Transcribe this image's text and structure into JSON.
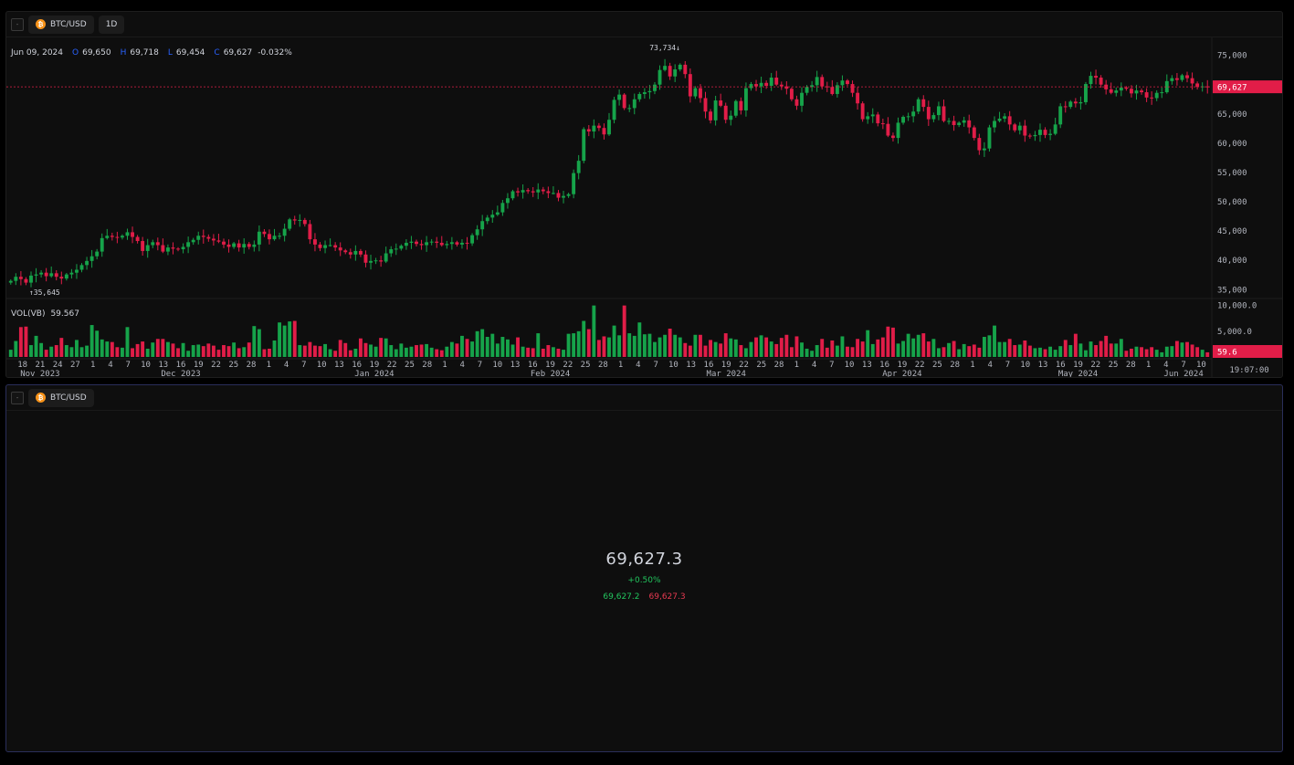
{
  "top_panel": {
    "symbol": "BTC/USD",
    "interval": "1D",
    "collapse_glyph": "-",
    "coin_glyph": "₿",
    "legend": {
      "date": "Jun 09, 2024",
      "o_label": "O",
      "o_value": "69,650",
      "h_label": "H",
      "h_value": "69,718",
      "l_label": "L",
      "l_value": "69,454",
      "c_label": "C",
      "c_value": "69,627",
      "change": "-0.032%"
    },
    "high_marker": "73,734↓",
    "low_marker": "↑35,645",
    "volume_legend": {
      "label": "VOL(VB)",
      "value": "59.567"
    },
    "time_label": "19:07:00"
  },
  "chart_data": {
    "type": "candlestick",
    "price_axis": [
      "75,000",
      "70,000",
      "65,000",
      "60,000",
      "55,000",
      "50,000",
      "45,000",
      "40,000",
      "35,000"
    ],
    "price_ylim": [
      33800,
      76500
    ],
    "last_price_label": "69,627",
    "last_price": 69627,
    "volume_axis": [
      "10,000.0",
      "5,000.0"
    ],
    "volume_ylim": [
      0,
      11000
    ],
    "last_volume_label": "59.6",
    "day_ticks": [
      "18",
      "21",
      "24",
      "27",
      "1",
      "4",
      "7",
      "10",
      "13",
      "16",
      "19",
      "22",
      "25",
      "28",
      "1",
      "4",
      "7",
      "10",
      "13",
      "16",
      "19",
      "22",
      "25",
      "28",
      "1",
      "4",
      "7",
      "10",
      "13",
      "16",
      "19",
      "22",
      "25",
      "28",
      "1",
      "4",
      "7",
      "10",
      "13",
      "16",
      "19",
      "22",
      "25",
      "28",
      "1",
      "4",
      "7",
      "10",
      "13",
      "16",
      "19",
      "22",
      "25",
      "28",
      "1",
      "4",
      "7",
      "10",
      "13",
      "16",
      "19",
      "22",
      "25",
      "28",
      "1",
      "4",
      "7",
      "10"
    ],
    "month_labels": [
      "Nov 2023",
      "Dec 2023",
      "Jan 2024",
      "Feb 2024",
      "Mar 2024",
      "Apr 2024",
      "May 2024",
      "Jun 2024"
    ],
    "colors": {
      "up": "#16a34a",
      "down": "#e11d48",
      "last_line": "#e11d48",
      "accent": "#2962ff"
    },
    "closes": [
      36500,
      37200,
      36800,
      36200,
      37400,
      37600,
      37900,
      37300,
      37800,
      37200,
      36900,
      37600,
      37900,
      38400,
      39200,
      39900,
      40700,
      41500,
      43800,
      44200,
      44000,
      43900,
      44200,
      44800,
      44000,
      43300,
      41600,
      42600,
      43100,
      42600,
      41500,
      42200,
      42000,
      41900,
      42300,
      43100,
      43500,
      44200,
      44000,
      43700,
      43400,
      43200,
      42700,
      42300,
      42900,
      42200,
      42800,
      42300,
      42700,
      44900,
      44500,
      43600,
      44200,
      44200,
      45400,
      47000,
      46800,
      46900,
      46200,
      43600,
      42700,
      42100,
      42600,
      42600,
      42200,
      41700,
      41400,
      41000,
      41600,
      41000,
      39600,
      39900,
      40000,
      39800,
      41200,
      41900,
      42000,
      42500,
      43000,
      43200,
      42800,
      42600,
      43100,
      43200,
      43000,
      42600,
      42800,
      43100,
      42700,
      43000,
      42900,
      44300,
      45300,
      46700,
      47300,
      47800,
      48200,
      49800,
      50600,
      51800,
      51600,
      52000,
      51800,
      51600,
      52100,
      51800,
      51500,
      51500,
      50700,
      51000,
      51300,
      54900,
      57000,
      62400,
      62000,
      63000,
      62600,
      61500,
      64000,
      67400,
      68300,
      66000,
      66000,
      67500,
      68400,
      68700,
      68900,
      70000,
      72500,
      73200,
      71400,
      72600,
      73400,
      71800,
      68000,
      69400,
      67700,
      65400,
      63900,
      67300,
      66400,
      64000,
      64700,
      67200,
      65600,
      69400,
      70100,
      69700,
      70300,
      69800,
      71200,
      70000,
      69700,
      69300,
      67500,
      66400,
      68600,
      69600,
      69900,
      71300,
      69700,
      69600,
      68400,
      69900,
      70700,
      70100,
      68600,
      66800,
      64100,
      64600,
      64900,
      63400,
      63300,
      61300,
      60900,
      63500,
      64500,
      64600,
      65400,
      67500,
      66200,
      64100,
      64800,
      66300,
      63800,
      63800,
      63100,
      63500,
      63900,
      62700,
      60900,
      58800,
      59100,
      62700,
      63800,
      64200,
      64600,
      63200,
      62200,
      63000,
      61300,
      61200,
      61400,
      62300,
      61400,
      61600,
      63200,
      66300,
      66200,
      67100,
      66800,
      67000,
      70100,
      71500,
      71200,
      70000,
      69200,
      68600,
      69000,
      69500,
      69300,
      68500,
      69000,
      68700,
      67800,
      67700,
      68600,
      68700,
      70600,
      71100,
      70800,
      71600,
      71100,
      70200,
      69600,
      69700,
      69627
    ],
    "volumes": [
      1400,
      3100,
      5800,
      5900,
      2300,
      4100,
      2700,
      1400,
      2000,
      2300,
      3700,
      2300,
      1900,
      3300,
      1900,
      2200,
      6200,
      5100,
      3400,
      3000,
      2900,
      1900,
      1800,
      5800,
      1700,
      2500,
      3000,
      1600,
      2800,
      3500,
      3500,
      2900,
      2600,
      1700,
      2700,
      1200,
      2300,
      2400,
      2100,
      2600,
      2200,
      1400,
      2300,
      2100,
      2800,
      1700,
      1900,
      2800,
      6000,
      5400,
      1500,
      1600,
      3200,
      6700,
      6100,
      6900,
      7000,
      2300,
      2200,
      2900,
      2200,
      2100,
      2500,
      1500,
      1200,
      3300,
      2700,
      1300,
      1600,
      3600,
      2700,
      2400,
      2000,
      3700,
      3600,
      2300,
      1500,
      2600,
      1800,
      2000,
      2300,
      2400,
      2500,
      1800,
      1500,
      1300,
      2000,
      2900,
      2600,
      4100,
      3500,
      3000,
      5000,
      5400,
      3900,
      4500,
      2600,
      3900,
      3400,
      2400,
      3800,
      2000,
      1800,
      1700,
      4600,
      1600,
      2300,
      1900,
      1600,
      1400,
      4500,
      4600,
      5000,
      7000,
      5400,
      10000,
      3300,
      4000,
      3800,
      6100,
      4200,
      10000,
      4600,
      4100,
      6700,
      4400,
      4500,
      2900,
      3800,
      4300,
      5500,
      4300,
      3800,
      2700,
      2200,
      4300,
      4300,
      2200,
      3300,
      2900,
      2600,
      4600,
      3600,
      3400,
      2300,
      1700,
      2900,
      3800,
      4200,
      3800,
      3000,
      2500,
      3700,
      4300,
      1900,
      4000,
      2800,
      1600,
      1200,
      2300,
      3500,
      1800,
      3200,
      2200,
      4000,
      2000,
      1900,
      3500,
      3000,
      5200,
      2500,
      3400,
      3800,
      5900,
      5700,
      2600,
      3100,
      4500,
      3600,
      4300,
      4600,
      3000,
      3500,
      1700,
      1900,
      2700,
      3100,
      1500,
      2500,
      2100,
      2400,
      1800,
      3900,
      4200,
      6100,
      2900,
      2900,
      3500,
      2300,
      2400,
      3200,
      2200,
      1700,
      1800,
      1500,
      2000,
      1400,
      2100,
      3300,
      2300,
      4500,
      2600,
      1300,
      3000,
      2300,
      3100,
      4100,
      2600,
      2600,
      3500,
      1200,
      1600,
      2000,
      1900,
      1500,
      1900,
      1400,
      900,
      2000,
      2100,
      3100,
      2800,
      2900,
      2400,
      1900,
      1400,
      900,
      750,
      60
    ]
  },
  "bottom_panel": {
    "symbol": "BTC/USD",
    "collapse_glyph": "-",
    "coin_glyph": "₿",
    "price": "69,627.3",
    "change": "+0.50%",
    "bid": "69,627.2",
    "ask": "69,627.3"
  }
}
